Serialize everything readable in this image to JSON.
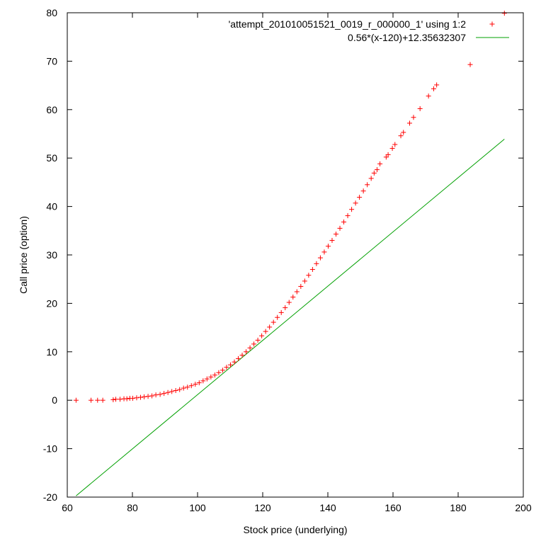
{
  "chart_data": {
    "type": "scatter",
    "title": "",
    "xlabel": "Stock price (underlying)",
    "ylabel": "Call price (option)",
    "xlim": [
      60,
      200
    ],
    "ylim": [
      -20,
      80
    ],
    "xticks": [
      60,
      80,
      100,
      120,
      140,
      160,
      180,
      200
    ],
    "yticks": [
      -20,
      -10,
      0,
      10,
      20,
      30,
      40,
      50,
      60,
      70,
      80
    ],
    "grid": false,
    "legend_position": "top-right",
    "colors": {
      "points": "#ff0000",
      "line": "#00a000",
      "frame": "#000000"
    },
    "series": [
      {
        "name": "'attempt_201010051521_0019_r_000000_1' using 1:2",
        "kind": "points",
        "marker": "+",
        "x": [
          62.7,
          67.3,
          69.3,
          70.9,
          74.1,
          74.9,
          76.2,
          77.4,
          78.3,
          79.2,
          80.1,
          81.3,
          82.5,
          83.6,
          84.8,
          86.0,
          87.2,
          88.5,
          89.7,
          90.9,
          92.1,
          93.3,
          94.5,
          95.7,
          96.9,
          98.1,
          99.3,
          100.5,
          101.7,
          102.9,
          104.1,
          105.3,
          106.5,
          107.7,
          108.9,
          110.1,
          111.3,
          112.5,
          113.7,
          114.9,
          116.1,
          117.3,
          118.5,
          119.7,
          120.9,
          122.1,
          123.3,
          124.5,
          125.7,
          126.9,
          128.1,
          129.3,
          130.5,
          131.7,
          132.9,
          134.1,
          135.3,
          136.5,
          137.7,
          138.9,
          140.1,
          141.3,
          142.5,
          143.7,
          144.9,
          146.1,
          147.3,
          148.5,
          149.7,
          150.9,
          152.1,
          153.3,
          154.2,
          155.1,
          156.0,
          157.9,
          158.5,
          159.8,
          160.6,
          162.4,
          163.2,
          165.1,
          166.3,
          168.3,
          170.9,
          172.5,
          173.4,
          183.7,
          194.2
        ],
        "y": [
          0.0,
          0.0,
          0.0,
          0.0,
          0.1,
          0.2,
          0.2,
          0.3,
          0.3,
          0.4,
          0.4,
          0.5,
          0.6,
          0.7,
          0.8,
          0.9,
          1.1,
          1.2,
          1.4,
          1.6,
          1.8,
          2.0,
          2.2,
          2.5,
          2.7,
          3.0,
          3.3,
          3.6,
          4.0,
          4.4,
          4.8,
          5.2,
          5.7,
          6.2,
          6.8,
          7.3,
          7.9,
          8.6,
          9.3,
          10.0,
          10.8,
          11.6,
          12.4,
          13.3,
          14.2,
          15.1,
          16.1,
          17.1,
          18.1,
          19.1,
          20.2,
          21.3,
          22.4,
          23.5,
          24.6,
          25.8,
          27.0,
          28.2,
          29.4,
          30.6,
          31.8,
          33.0,
          34.3,
          35.5,
          36.8,
          38.1,
          39.4,
          40.7,
          41.9,
          43.2,
          44.5,
          45.8,
          46.9,
          47.6,
          48.8,
          50.2,
          50.7,
          52.0,
          52.8,
          54.6,
          55.3,
          57.2,
          58.4,
          60.2,
          62.8,
          64.3,
          65.1,
          69.3,
          79.9
        ]
      },
      {
        "name": "0.56*(x-120)+12.35632307",
        "kind": "line",
        "x": [
          62.7,
          194.2
        ],
        "y": [
          -19.73,
          53.91
        ]
      }
    ]
  }
}
